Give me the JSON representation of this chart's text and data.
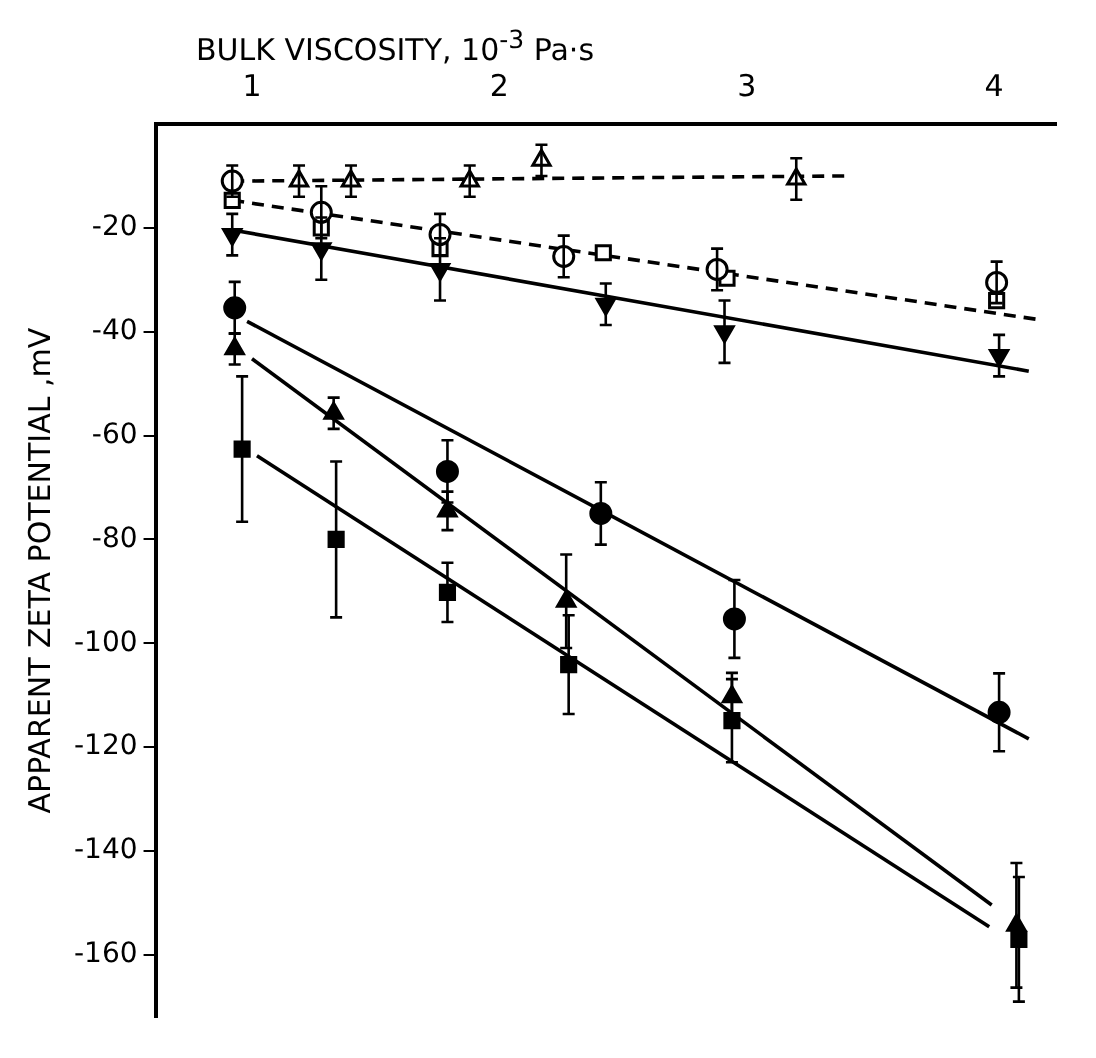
{
  "chart_data": {
    "type": "scatter",
    "xlabel": "BULK VISCOSITY, 10$^{-3}$ Pa·s",
    "ylabel": "APPARENT ZETA POTENTIAL ,mV",
    "xlim": [
      0.61,
      4.25
    ],
    "xticks": [
      1,
      2,
      3,
      4
    ],
    "ylim": [
      -172,
      0
    ],
    "yticks": [
      -20,
      -40,
      -60,
      -80,
      -100,
      -120,
      -140,
      -160
    ],
    "grid": false,
    "legend": false,
    "series": [
      {
        "type": "scatter",
        "marker": "triangle",
        "color": "#ffffff",
        "x": [
          1.19,
          1.4,
          1.88,
          2.17,
          3.2
        ],
        "values": [
          -11,
          -11,
          -11,
          -7,
          -10.6
        ],
        "errors": [
          3,
          3,
          3,
          3,
          4
        ]
      },
      {
        "type": "scatter",
        "marker": "circle",
        "color": "#ffffff",
        "x": [
          0.92,
          1.28,
          1.76,
          2.26,
          2.88,
          4.01
        ],
        "values": [
          -11,
          -17,
          -21.3,
          -25.5,
          -28,
          -30.5
        ],
        "errors": [
          3,
          5,
          4,
          4,
          4,
          4
        ]
      },
      {
        "type": "scatter",
        "marker": "square",
        "color": "#ffffff",
        "x": [
          0.92,
          1.28,
          1.76,
          2.42,
          2.92,
          4.01
        ],
        "values": [
          -14.7,
          -20,
          -24,
          -24.8,
          -29.7,
          -34
        ],
        "errors": [
          null,
          null,
          null,
          null,
          null,
          null
        ]
      },
      {
        "type": "scatter",
        "marker": "triangle-down",
        "color": "#000000",
        "x": [
          0.92,
          1.28,
          1.76,
          2.43,
          2.91,
          4.02
        ],
        "values": [
          -21.3,
          -24,
          -28,
          -34.7,
          -40,
          -44.6
        ],
        "errors": [
          4,
          6,
          6,
          4,
          6,
          4
        ]
      },
      {
        "type": "scatter",
        "marker": "circle",
        "color": "#000000",
        "x": [
          0.93,
          1.79,
          2.41,
          2.95,
          4.02
        ],
        "values": [
          -35.4,
          -66.9,
          -75,
          -95.3,
          -113.3
        ],
        "errors": [
          5,
          6,
          6,
          7.5,
          7.5
        ]
      },
      {
        "type": "scatter",
        "marker": "triangle",
        "color": "#000000",
        "x": [
          0.93,
          1.33,
          1.79,
          2.27,
          2.94,
          4.09
        ],
        "values": [
          -43.3,
          -55.7,
          -74.5,
          -91.9,
          -110.3,
          -154.3
        ],
        "errors": [
          3,
          3,
          3.7,
          9,
          4.6,
          12
        ]
      },
      {
        "type": "scatter",
        "marker": "square",
        "color": "#000000",
        "x": [
          0.96,
          1.34,
          1.79,
          2.28,
          2.94,
          4.1
        ],
        "values": [
          -62.6,
          -80,
          -90.2,
          -104.1,
          -114.9,
          -157
        ],
        "errors": [
          14,
          15,
          5.7,
          9.5,
          8,
          12
        ]
      },
      {
        "type": "line",
        "line_style": "dashed",
        "color": "#000000",
        "x": [
          0.92,
          3.4
        ],
        "values": [
          -11,
          -10
        ]
      },
      {
        "type": "line",
        "line_style": "dashed",
        "color": "#000000",
        "x": [
          0.92,
          4.17
        ],
        "values": [
          -14.7,
          -37.6
        ]
      },
      {
        "type": "line",
        "line_style": "solid",
        "color": "#000000",
        "x": [
          0.92,
          4.14
        ],
        "values": [
          -20.4,
          -47.6
        ]
      },
      {
        "type": "line",
        "line_style": "solid",
        "color": "#000000",
        "x": [
          0.98,
          4.14
        ],
        "values": [
          -38,
          -118.4
        ]
      },
      {
        "type": "line",
        "line_style": "solid",
        "color": "#000000",
        "x": [
          1.0,
          3.99
        ],
        "values": [
          -45.2,
          -150.4
        ]
      },
      {
        "type": "line",
        "line_style": "solid",
        "color": "#000000",
        "x": [
          1.02,
          3.98
        ],
        "values": [
          -63.9,
          -154.6
        ]
      }
    ]
  }
}
